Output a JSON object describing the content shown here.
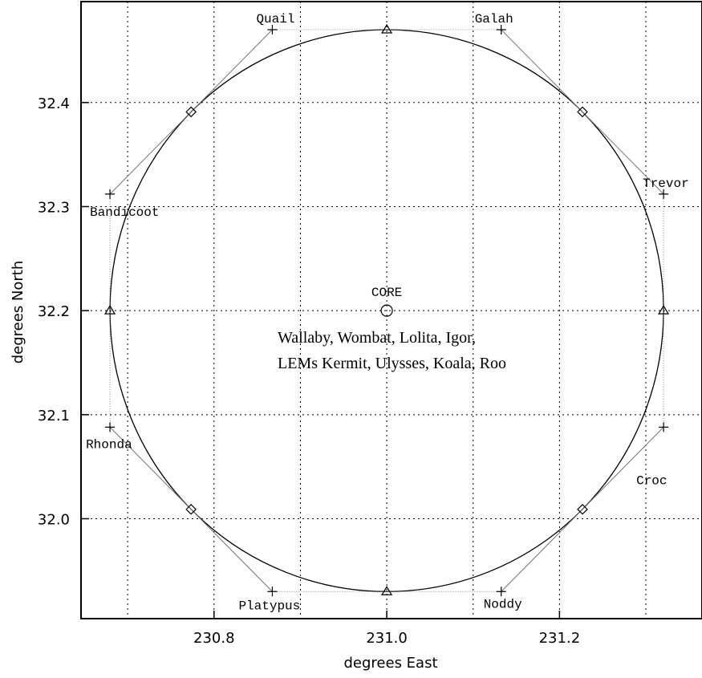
{
  "chart_data": {
    "type": "scatter",
    "xlabel": "degrees East",
    "ylabel": "degrees North",
    "xlim": [
      230.646,
      231.365
    ],
    "ylim": [
      31.904,
      32.497
    ],
    "x_ticks": [
      230.8,
      231.0,
      231.2
    ],
    "x_tick_labels": [
      "230.8",
      "231.0",
      "231.2"
    ],
    "y_ticks": [
      32.0,
      32.1,
      32.2,
      32.3,
      32.4
    ],
    "y_tick_labels": [
      "32.0",
      "32.1",
      "32.2",
      "32.3",
      "32.4"
    ],
    "grid_x": [
      230.7,
      230.8,
      230.9,
      231.0,
      231.1,
      231.2,
      231.3
    ],
    "grid_y": [
      32.0,
      32.1,
      32.2,
      32.3,
      32.4
    ],
    "grid": true,
    "circle": {
      "center": [
        231.0,
        32.2
      ],
      "radius_x": 0.3205,
      "radius_y": 0.27
    },
    "stations": [
      {
        "name": "Quail",
        "x": 230.8675,
        "y": 32.47
      },
      {
        "name": "Galah",
        "x": 231.1325,
        "y": 32.47
      },
      {
        "name": "Trevor",
        "x": 231.3205,
        "y": 32.312
      },
      {
        "name": "Croc",
        "x": 231.3205,
        "y": 32.088
      },
      {
        "name": "Noddy",
        "x": 231.1325,
        "y": 31.93
      },
      {
        "name": "Platypus",
        "x": 230.8675,
        "y": 31.93
      },
      {
        "name": "Rhonda",
        "x": 230.6795,
        "y": 32.088
      },
      {
        "name": "Bandicoot",
        "x": 230.6795,
        "y": 32.312
      }
    ],
    "triangles": [
      {
        "x": 231.0,
        "y": 32.47
      },
      {
        "x": 231.3205,
        "y": 32.2
      },
      {
        "x": 231.0,
        "y": 31.93
      },
      {
        "x": 230.6795,
        "y": 32.2
      }
    ],
    "diamonds": [
      {
        "x": 231.2266,
        "y": 32.391
      },
      {
        "x": 231.2266,
        "y": 32.009
      },
      {
        "x": 230.7734,
        "y": 32.009
      },
      {
        "x": 230.7734,
        "y": 32.391
      }
    ],
    "core": {
      "name": "CORE",
      "x": 231.0,
      "y": 32.2
    },
    "annotation_lines": [
      "Wallaby, Wombat, Lolita, Igor,",
      "LEMs Kermit, Ulysses, Koala, Roo"
    ]
  }
}
